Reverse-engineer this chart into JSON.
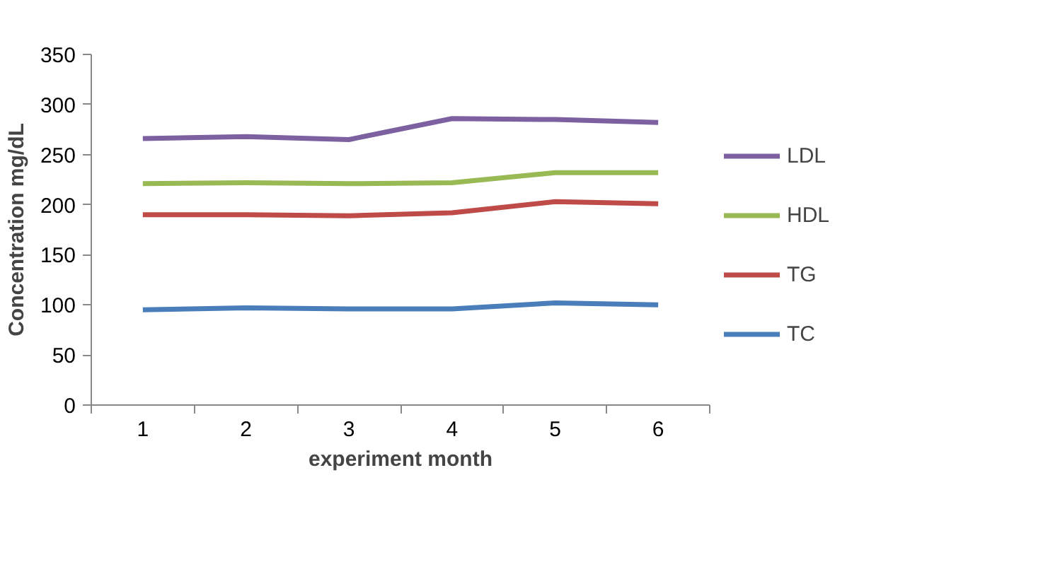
{
  "chart_data": {
    "type": "line",
    "xlabel": "experiment month",
    "ylabel": "Concentration mg/dL",
    "categories": [
      "1",
      "2",
      "3",
      "4",
      "5",
      "6"
    ],
    "series": [
      {
        "name": "TC",
        "color": "#4a7ebb",
        "values": [
          95,
          97,
          96,
          96,
          102,
          100
        ]
      },
      {
        "name": "TG",
        "color": "#be4b48",
        "values": [
          190,
          190,
          189,
          192,
          203,
          201
        ]
      },
      {
        "name": "HDL",
        "color": "#98b954",
        "values": [
          221,
          222,
          221,
          222,
          232,
          232
        ]
      },
      {
        "name": "LDL",
        "color": "#7d60a0",
        "values": [
          266,
          268,
          265,
          286,
          285,
          282
        ]
      }
    ],
    "ylim": [
      0,
      350
    ],
    "yticks": [
      0,
      50,
      100,
      150,
      200,
      250,
      300,
      350
    ],
    "grid": false,
    "legend": "right",
    "marker": "none",
    "line_style": "solid"
  }
}
